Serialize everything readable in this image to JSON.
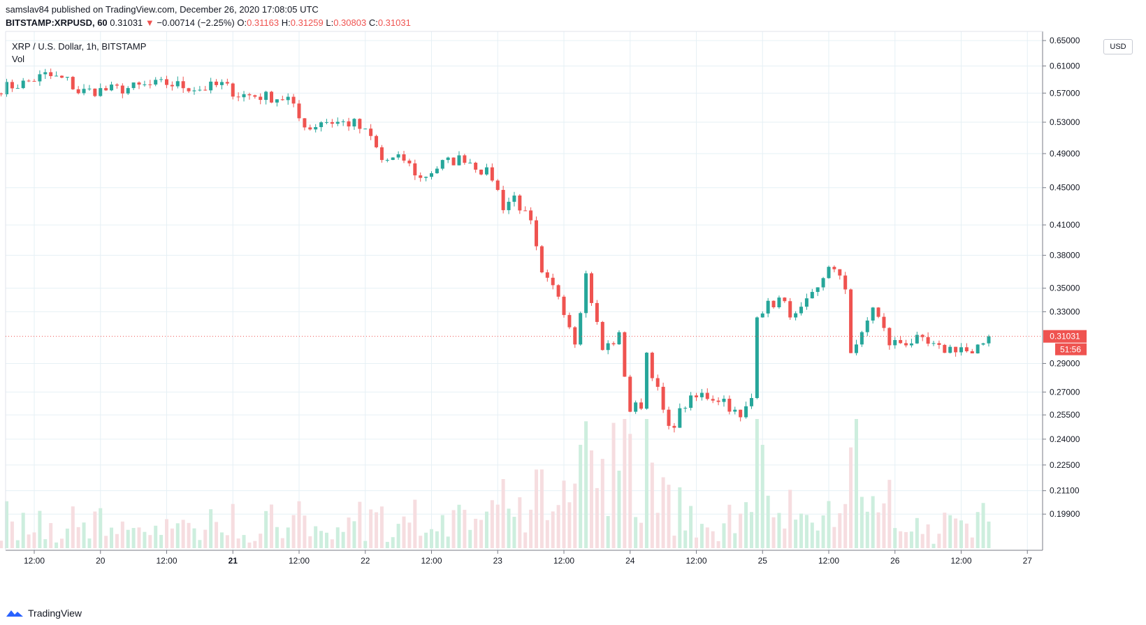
{
  "header": {
    "published": "samslav84 published on TradingView.com, December 26, 2020 17:08:05 UTC",
    "symbol": "BITSTAMP:XRPUSD, 60",
    "last": "0.31031",
    "change_arrow": "▼",
    "change": "−0.00714 (−2.25%)",
    "o_label": "O:",
    "o_value": "0.31163",
    "h_label": "H:",
    "h_value": "0.31259",
    "l_label": "L:",
    "l_value": "0.30803",
    "c_label": "C:",
    "c_value": "0.31031"
  },
  "legend": {
    "series_title": "XRP / U.S. Dollar, 1h, BITSTAMP",
    "vol_label": "Vol"
  },
  "footer": {
    "brand": "TradingView",
    "logo_icon": "tradingview-logo-icon"
  },
  "colors": {
    "up": "#26a69a",
    "down": "#ef5350",
    "up_vol": "#cdeede",
    "down_vol": "#f6dde0",
    "grid": "#e6f0f5",
    "axis_text": "#131722"
  },
  "chart_data": {
    "type": "candlestick",
    "currency": "USD",
    "price_scale": "log",
    "ylim": [
      0.185,
      0.665
    ],
    "y_ticks": [
      "0.65000",
      "0.61000",
      "0.57000",
      "0.53000",
      "0.49000",
      "0.45000",
      "0.41000",
      "0.38000",
      "0.35000",
      "0.33000",
      "0.29000",
      "0.27000",
      "0.25500",
      "0.24000",
      "0.22500",
      "0.21100",
      "0.19900"
    ],
    "x_ticks": [
      "12:00",
      "20",
      "12:00",
      "21",
      "12:00",
      "22",
      "12:00",
      "23",
      "12:00",
      "24",
      "12:00",
      "25",
      "12:00",
      "26",
      "12:00",
      "27"
    ],
    "bold_x_tick": "21",
    "last_price_label": "0.31031",
    "countdown_label": "51:56",
    "anchors": [
      {
        "t": "2020-12-19T06:00",
        "p": 0.577
      },
      {
        "t": "2020-12-19T10:00",
        "p": 0.584
      },
      {
        "t": "2020-12-19T14:00",
        "p": 0.596
      },
      {
        "t": "2020-12-19T18:00",
        "p": 0.588
      },
      {
        "t": "2020-12-19T20:00",
        "p": 0.572
      },
      {
        "t": "2020-12-20T04:00",
        "p": 0.576
      },
      {
        "t": "2020-12-20T12:00",
        "p": 0.584
      },
      {
        "t": "2020-12-20T18:00",
        "p": 0.576
      },
      {
        "t": "2020-12-20T22:00",
        "p": 0.582
      },
      {
        "t": "2020-12-21T01:00",
        "p": 0.568
      },
      {
        "t": "2020-12-21T06:00",
        "p": 0.565
      },
      {
        "t": "2020-12-21T10:00",
        "p": 0.562
      },
      {
        "t": "2020-12-21T12:00",
        "p": 0.535
      },
      {
        "t": "2020-12-21T14:00",
        "p": 0.522
      },
      {
        "t": "2020-12-21T16:00",
        "p": 0.532
      },
      {
        "t": "2020-12-21T22:00",
        "p": 0.528
      },
      {
        "t": "2020-12-22T01:00",
        "p": 0.51
      },
      {
        "t": "2020-12-22T03:00",
        "p": 0.482
      },
      {
        "t": "2020-12-22T07:00",
        "p": 0.483
      },
      {
        "t": "2020-12-22T10:00",
        "p": 0.46
      },
      {
        "t": "2020-12-22T14:00",
        "p": 0.478
      },
      {
        "t": "2020-12-22T18:00",
        "p": 0.485
      },
      {
        "t": "2020-12-22T23:00",
        "p": 0.462
      },
      {
        "t": "2020-12-23T01:00",
        "p": 0.43
      },
      {
        "t": "2020-12-23T03:00",
        "p": 0.44
      },
      {
        "t": "2020-12-23T06:00",
        "p": 0.41
      },
      {
        "t": "2020-12-23T08:00",
        "p": 0.36
      },
      {
        "t": "2020-12-23T11:00",
        "p": 0.345
      },
      {
        "t": "2020-12-23T14:00",
        "p": 0.308
      },
      {
        "t": "2020-12-23T16:00",
        "p": 0.362
      },
      {
        "t": "2020-12-23T19:00",
        "p": 0.3
      },
      {
        "t": "2020-12-23T22:00",
        "p": 0.31
      },
      {
        "t": "2020-12-24T00:00",
        "p": 0.258
      },
      {
        "t": "2020-12-24T02:00",
        "p": 0.262
      },
      {
        "t": "2020-12-24T03:00",
        "p": 0.298
      },
      {
        "t": "2020-12-24T07:00",
        "p": 0.245
      },
      {
        "t": "2020-12-24T10:00",
        "p": 0.262
      },
      {
        "t": "2020-12-24T13:00",
        "p": 0.268
      },
      {
        "t": "2020-12-24T17:00",
        "p": 0.265
      },
      {
        "t": "2020-12-24T20:00",
        "p": 0.252
      },
      {
        "t": "2020-12-24T22:00",
        "p": 0.266
      },
      {
        "t": "2020-12-24T23:00",
        "p": 0.33
      },
      {
        "t": "2020-12-25T03:00",
        "p": 0.34
      },
      {
        "t": "2020-12-25T06:00",
        "p": 0.325
      },
      {
        "t": "2020-12-25T10:00",
        "p": 0.348
      },
      {
        "t": "2020-12-25T12:00",
        "p": 0.372
      },
      {
        "t": "2020-12-25T15:00",
        "p": 0.35
      },
      {
        "t": "2020-12-25T16:00",
        "p": 0.3
      },
      {
        "t": "2020-12-25T18:00",
        "p": 0.31
      },
      {
        "t": "2020-12-25T20:00",
        "p": 0.335
      },
      {
        "t": "2020-12-25T23:00",
        "p": 0.305
      },
      {
        "t": "2020-12-26T04:00",
        "p": 0.307
      },
      {
        "t": "2020-12-26T08:00",
        "p": 0.3
      },
      {
        "t": "2020-12-26T12:00",
        "p": 0.302
      },
      {
        "t": "2020-12-26T14:00",
        "p": 0.295
      },
      {
        "t": "2020-12-26T15:00",
        "p": 0.3
      },
      {
        "t": "2020-12-26T17:00",
        "p": 0.3103
      }
    ],
    "volume_spikes": [
      {
        "t": "2020-12-23T21:00",
        "v": 0.97,
        "dir": "down"
      },
      {
        "t": "2020-12-23T22:00",
        "v": 0.6,
        "dir": "up"
      },
      {
        "t": "2020-12-25T00:00",
        "v": 0.8,
        "dir": "up"
      },
      {
        "t": "2020-12-25T16:00",
        "v": 0.78,
        "dir": "down"
      },
      {
        "t": "2020-12-25T17:00",
        "v": 1.0,
        "dir": "up"
      },
      {
        "t": "2020-12-26T16:00",
        "v": 0.35,
        "dir": "up"
      }
    ]
  }
}
